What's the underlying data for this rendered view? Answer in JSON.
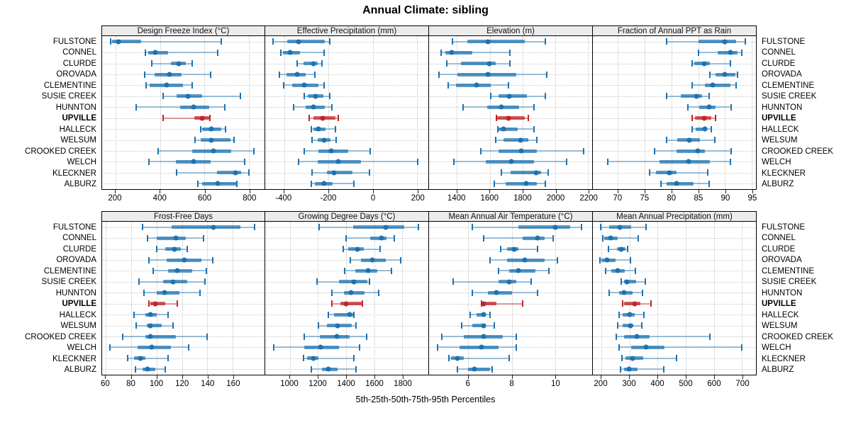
{
  "title": "Annual Climate: sibling",
  "caption": "5th-25th-50th-75th-95th Percentiles",
  "highlighted_location": "UPVILLE",
  "colors": {
    "series_main": "#1d72b0",
    "series_iqr": "rgba(29,114,176,0.72)",
    "series_whisker": "rgba(29,114,176,0.42)",
    "highlight_main": "#c02528",
    "highlight_iqr": "rgba(192,37,40,0.75)",
    "highlight_whisker": "rgba(192,37,40,0.45)",
    "strip_background": "#ececec",
    "gridline": "#c6c6c6"
  },
  "chart_data": {
    "type": "dotplot-intervals",
    "layout": {
      "rows": 2,
      "cols": 4,
      "grid": "dotted",
      "legend": "none",
      "row_labels": "both-sides"
    },
    "percentiles": [
      5,
      25,
      50,
      75,
      95
    ],
    "locations": [
      "FULSTONE",
      "CONNEL",
      "CLURDE",
      "OROVADA",
      "CLEMENTINE",
      "SUSIE CREEK",
      "HUNNTON",
      "UPVILLE",
      "HALLECK",
      "WELSUM",
      "CROOKED CREEK",
      "WELCH",
      "KLECKNER",
      "ALBURZ"
    ],
    "panels": [
      {
        "title": "Design Freeze Index (°C)",
        "xlim": [
          140,
          870
        ],
        "ticks": [
          200,
          400,
          600,
          800
        ],
        "values": [
          [
            178,
            185,
            212,
            316,
            677
          ],
          [
            333,
            348,
            378,
            437,
            660
          ],
          [
            362,
            450,
            484,
            517,
            546
          ],
          [
            332,
            375,
            442,
            498,
            628
          ],
          [
            338,
            354,
            430,
            503,
            546
          ],
          [
            414,
            474,
            526,
            588,
            762
          ],
          [
            293,
            492,
            551,
            620,
            690
          ],
          [
            414,
            555,
            591,
            620,
            625
          ],
          [
            583,
            591,
            631,
            677,
            695
          ],
          [
            559,
            583,
            631,
            716,
            732
          ],
          [
            391,
            546,
            642,
            719,
            823
          ],
          [
            351,
            471,
            551,
            629,
            782
          ],
          [
            476,
            655,
            738,
            766,
            800
          ],
          [
            570,
            591,
            661,
            741,
            746
          ]
        ]
      },
      {
        "title": "Effective Precipitation (mm)",
        "xlim": [
          -485,
          250
        ],
        "ticks": [
          -400,
          -200,
          0,
          200
        ],
        "values": [
          [
            -450,
            -385,
            -335,
            -217,
            -194
          ],
          [
            -415,
            -405,
            -372,
            -329,
            -220
          ],
          [
            -342,
            -313,
            -267,
            -249,
            -230
          ],
          [
            -420,
            -388,
            -340,
            -303,
            -260
          ],
          [
            -401,
            -364,
            -308,
            -244,
            -220
          ],
          [
            -310,
            -294,
            -257,
            -222,
            -194
          ],
          [
            -356,
            -303,
            -267,
            -217,
            -185
          ],
          [
            -287,
            -267,
            -225,
            -169,
            -156
          ],
          [
            -278,
            -267,
            -246,
            -214,
            -169
          ],
          [
            -274,
            -249,
            -220,
            -190,
            -167
          ],
          [
            -310,
            -244,
            -188,
            -110,
            -11
          ],
          [
            -335,
            -249,
            -156,
            -53,
            202
          ],
          [
            -274,
            -206,
            -174,
            -92,
            -14
          ],
          [
            -278,
            -260,
            -220,
            -180,
            -87
          ]
        ]
      },
      {
        "title": "Elevation (m)",
        "xlim": [
          1230,
          2225
        ],
        "ticks": [
          1400,
          1600,
          1800,
          2000,
          2200
        ],
        "values": [
          [
            1373,
            1462,
            1591,
            1812,
            1941
          ],
          [
            1304,
            1328,
            1368,
            1495,
            1725
          ],
          [
            1340,
            1426,
            1596,
            1635,
            1725
          ],
          [
            1289,
            1404,
            1591,
            1764,
            1947
          ],
          [
            1347,
            1394,
            1519,
            1606,
            1714
          ],
          [
            1606,
            1656,
            1721,
            1829,
            1941
          ],
          [
            1437,
            1584,
            1673,
            1778,
            1872
          ],
          [
            1639,
            1645,
            1714,
            1814,
            1836
          ],
          [
            1649,
            1656,
            1685,
            1771,
            1872
          ],
          [
            1635,
            1685,
            1786,
            1836,
            1889
          ],
          [
            1544,
            1656,
            1793,
            1889,
            2171
          ],
          [
            1383,
            1577,
            1732,
            1872,
            2071
          ],
          [
            1673,
            1728,
            1882,
            1915,
            1958
          ],
          [
            1627,
            1696,
            1822,
            1886,
            1941
          ]
        ]
      },
      {
        "title": "Fraction of Annual PPT as Rain",
        "xlim": [
          65.3,
          95.8
        ],
        "ticks": [
          70,
          75,
          80,
          85,
          90,
          95
        ],
        "values": [
          [
            79.1,
            85.0,
            89.9,
            92.1,
            93.8
          ],
          [
            85.0,
            88.6,
            91.0,
            92.3,
            93.2
          ],
          [
            83.9,
            84.2,
            86.1,
            87.2,
            91.0
          ],
          [
            87.2,
            88.3,
            90.0,
            91.9,
            92.3
          ],
          [
            83.9,
            86.2,
            87.7,
            91.0,
            92.1
          ],
          [
            79.1,
            81.7,
            84.6,
            85.7,
            87.1
          ],
          [
            83.1,
            85.2,
            87.0,
            88.2,
            91.1
          ],
          [
            83.9,
            84.4,
            86.1,
            87.4,
            88.3
          ],
          [
            83.9,
            84.5,
            86.3,
            86.6,
            87.4
          ],
          [
            79.1,
            81.1,
            83.4,
            85.3,
            88.1
          ],
          [
            76.9,
            81.0,
            84.9,
            86.2,
            91.1
          ],
          [
            68.1,
            77.8,
            83.2,
            87.2,
            91.0
          ],
          [
            75.9,
            77.1,
            79.6,
            80.9,
            86.8
          ],
          [
            78.0,
            79.1,
            81.0,
            84.1,
            87.1
          ]
        ]
      },
      {
        "title": "Frost-Free Days",
        "xlim": [
          57,
          185
        ],
        "ticks": [
          60,
          80,
          100,
          120,
          140,
          160
        ],
        "values": [
          [
            89,
            112,
            145,
            166,
            177
          ],
          [
            93,
            100,
            115,
            123,
            137
          ],
          [
            100,
            107,
            114,
            119,
            124
          ],
          [
            94,
            108,
            122,
            135,
            144
          ],
          [
            97,
            109,
            116,
            128,
            139
          ],
          [
            86,
            105,
            113,
            124,
            138
          ],
          [
            90,
            100,
            106,
            118,
            134
          ],
          [
            94,
            95,
            99,
            107,
            116
          ],
          [
            82,
            91,
            95,
            100,
            109
          ],
          [
            84,
            92,
            95,
            104,
            113
          ],
          [
            73,
            91,
            95,
            115,
            140
          ],
          [
            63,
            85,
            96,
            111,
            125
          ],
          [
            77,
            82,
            87,
            91,
            109
          ],
          [
            83,
            89,
            93,
            99,
            107
          ]
        ]
      },
      {
        "title": "Growing Degree Days (°C)",
        "xlim": [
          825,
          1985
        ],
        "ticks": [
          1000,
          1200,
          1400,
          1600,
          1800
        ],
        "values": [
          [
            1210,
            1450,
            1680,
            1815,
            1915
          ],
          [
            1400,
            1570,
            1650,
            1685,
            1745
          ],
          [
            1380,
            1415,
            1480,
            1525,
            1640
          ],
          [
            1430,
            1505,
            1585,
            1680,
            1790
          ],
          [
            1390,
            1465,
            1555,
            1620,
            1725
          ],
          [
            1195,
            1350,
            1455,
            1550,
            1565
          ],
          [
            1300,
            1385,
            1435,
            1530,
            1630
          ],
          [
            1300,
            1360,
            1400,
            1510,
            1515
          ],
          [
            1275,
            1315,
            1425,
            1450,
            1455
          ],
          [
            1205,
            1265,
            1340,
            1440,
            1470
          ],
          [
            1100,
            1215,
            1335,
            1425,
            1545
          ],
          [
            885,
            1100,
            1220,
            1350,
            1495
          ],
          [
            1095,
            1125,
            1170,
            1205,
            1455
          ],
          [
            1155,
            1230,
            1275,
            1340,
            1470
          ]
        ]
      },
      {
        "title": "Mean Annual Air Temperature (°C)",
        "xlim": [
          4.2,
          11.7
        ],
        "ticks": [
          6,
          8,
          10
        ],
        "values": [
          [
            6.2,
            8.3,
            10.0,
            10.7,
            11.2
          ],
          [
            6.7,
            8.5,
            9.2,
            9.5,
            9.9
          ],
          [
            7.5,
            7.8,
            8.1,
            8.3,
            9.2
          ],
          [
            7.0,
            7.8,
            8.6,
            9.5,
            10.1
          ],
          [
            7.4,
            7.9,
            8.3,
            9.1,
            9.7
          ],
          [
            5.3,
            7.4,
            7.9,
            8.2,
            8.9
          ],
          [
            6.2,
            6.9,
            7.3,
            8.0,
            9.2
          ],
          [
            6.6,
            6.65,
            6.7,
            7.3,
            8.5
          ],
          [
            6.1,
            6.4,
            6.7,
            6.8,
            7.0
          ],
          [
            5.7,
            6.2,
            6.7,
            6.8,
            7.2
          ],
          [
            4.8,
            5.8,
            6.7,
            7.6,
            8.2
          ],
          [
            4.6,
            5.6,
            6.6,
            7.4,
            8.2
          ],
          [
            5.1,
            5.2,
            5.5,
            5.8,
            7.9
          ],
          [
            5.5,
            6.0,
            6.3,
            7.0,
            7.1
          ]
        ]
      },
      {
        "title": "Mean Annual Precipitation (mm)",
        "xlim": [
          170,
          750
        ],
        "ticks": [
          200,
          300,
          400,
          500,
          600,
          700
        ],
        "values": [
          [
            198,
            227,
            267,
            307,
            360
          ],
          [
            205,
            210,
            233,
            259,
            331
          ],
          [
            225,
            255,
            272,
            287,
            294
          ],
          [
            194,
            200,
            221,
            251,
            303
          ],
          [
            216,
            235,
            259,
            283,
            322
          ],
          [
            271,
            281,
            291,
            323,
            357
          ],
          [
            227,
            263,
            281,
            310,
            346
          ],
          [
            275,
            280,
            320,
            340,
            378
          ],
          [
            263,
            277,
            302,
            320,
            352
          ],
          [
            259,
            275,
            303,
            315,
            344
          ],
          [
            253,
            281,
            327,
            373,
            587
          ],
          [
            264,
            305,
            360,
            424,
            700
          ],
          [
            273,
            287,
            310,
            348,
            467
          ],
          [
            269,
            281,
            299,
            329,
            423
          ]
        ]
      }
    ]
  }
}
